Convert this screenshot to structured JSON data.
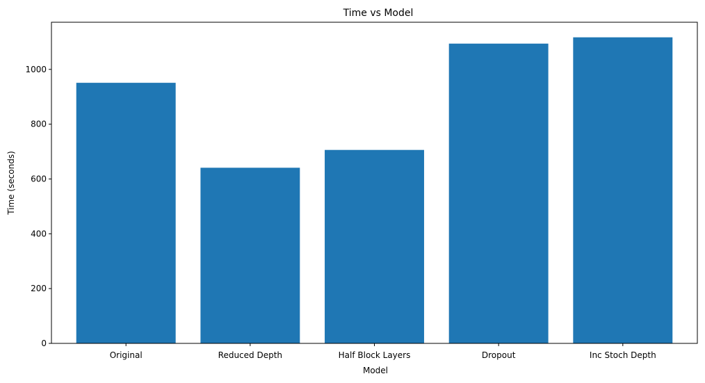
{
  "chart_data": {
    "type": "bar",
    "title": "Time vs Model",
    "xlabel": "Model",
    "ylabel": "Time (seconds)",
    "categories": [
      "Original",
      "Reduced Depth",
      "Half Block Layers",
      "Dropout",
      "Inc Stoch Depth"
    ],
    "values": [
      951,
      641,
      706,
      1094,
      1117
    ],
    "ylim": [
      0,
      1172
    ],
    "yticks": [
      0,
      200,
      400,
      600,
      800,
      1000
    ],
    "grid": false,
    "bar_color": "#1f77b4"
  }
}
